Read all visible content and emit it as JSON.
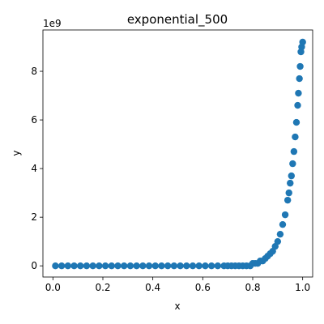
{
  "chart_data": {
    "type": "scatter",
    "title": "exponential_500",
    "xlabel": "x",
    "ylabel": "y",
    "y_offset_label": "1e9",
    "xlim": [
      -0.04,
      1.04
    ],
    "ylim": [
      -0.46,
      9.7
    ],
    "x_ticks": [
      0.0,
      0.2,
      0.4,
      0.6,
      0.8,
      1.0
    ],
    "x_tick_labels": [
      "0.0",
      "0.2",
      "0.4",
      "0.6",
      "0.8",
      "1.0"
    ],
    "y_ticks": [
      0,
      2,
      4,
      6,
      8
    ],
    "y_tick_labels": [
      "0",
      "2",
      "4",
      "6",
      "8"
    ],
    "y_unit_scale": 1000000000,
    "grid": false,
    "series": [
      {
        "color": "#1f77b4",
        "model": "y = exp(22.94 * x)",
        "n_points": 500,
        "x_range": [
          0.01,
          1.0
        ],
        "x": [
          0.01,
          0.035,
          0.06,
          0.085,
          0.11,
          0.135,
          0.16,
          0.185,
          0.21,
          0.235,
          0.26,
          0.285,
          0.31,
          0.335,
          0.36,
          0.385,
          0.41,
          0.435,
          0.46,
          0.485,
          0.51,
          0.535,
          0.56,
          0.585,
          0.61,
          0.635,
          0.66,
          0.685,
          0.7,
          0.715,
          0.73,
          0.745,
          0.76,
          0.775,
          0.79,
          0.8,
          0.81,
          0.82,
          0.83,
          0.84,
          0.85,
          0.86,
          0.87,
          0.88,
          0.89,
          0.9,
          0.91,
          0.92,
          0.93,
          0.94,
          0.945,
          0.95,
          0.955,
          0.96,
          0.965,
          0.97,
          0.975,
          0.98,
          0.983,
          0.987,
          0.99,
          0.993,
          0.996,
          1.0
        ],
        "y": [
          0.0,
          0.0,
          0.0,
          0.0,
          0.0,
          0.0,
          0.0,
          0.0,
          0.0,
          0.0,
          0.0,
          0.0,
          0.0,
          0.0,
          0.0,
          0.0,
          0.0,
          0.0,
          0.0,
          0.0,
          0.0,
          0.0,
          0.0,
          0.0,
          0.0,
          0.0,
          0.0,
          0.0,
          0.0,
          0.0,
          0.0,
          0.0,
          0.0,
          0.0,
          0.0,
          0.1,
          0.1,
          0.1,
          0.2,
          0.2,
          0.3,
          0.4,
          0.5,
          0.6,
          0.8,
          1.0,
          1.3,
          1.7,
          2.1,
          2.7,
          3.0,
          3.4,
          3.7,
          4.2,
          4.7,
          5.3,
          5.9,
          6.6,
          7.1,
          7.7,
          8.2,
          8.8,
          9.0,
          9.2
        ]
      }
    ]
  }
}
